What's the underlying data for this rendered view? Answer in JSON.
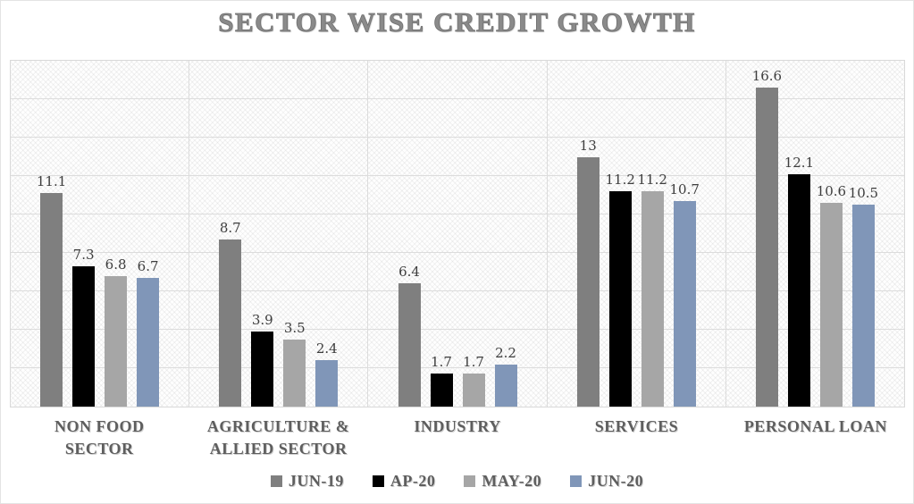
{
  "title": "SECTOR WISE CREDIT GROWTH",
  "colors": {
    "series_jun19": "#7F7F7F",
    "series_ap20": "#000000",
    "series_may20": "#A6A6A6",
    "series_jun20": "#8096B8",
    "gridline": "#DCDCDC",
    "plot_border": "#D9D9D9",
    "title_text": "#8A8A8A",
    "category_text": "#5E5E5E",
    "value_label_text": "#3D3D3D"
  },
  "chart_data": {
    "type": "bar",
    "title": "SECTOR WISE CREDIT GROWTH",
    "categories": [
      "NON FOOD SECTOR",
      "AGRICULTURE & ALLIED SECTOR",
      "INDUSTRY",
      "SERVICES",
      "PERSONAL LOAN"
    ],
    "series": [
      {
        "name": "JUN-19",
        "color": "#7F7F7F",
        "values": [
          11.1,
          8.7,
          6.4,
          13,
          16.6
        ]
      },
      {
        "name": "AP-20",
        "color": "#000000",
        "values": [
          7.3,
          3.9,
          1.7,
          11.2,
          12.1
        ]
      },
      {
        "name": "MAY-20",
        "color": "#A6A6A6",
        "values": [
          6.8,
          3.5,
          1.7,
          11.2,
          10.6
        ]
      },
      {
        "name": "JUN-20",
        "color": "#8096B8",
        "values": [
          6.7,
          2.4,
          2.2,
          10.7,
          10.5
        ]
      }
    ],
    "xlabel": "",
    "ylabel": "",
    "ylim": [
      0,
      18
    ],
    "gridline_step": 2,
    "grid": true,
    "data_labels": true,
    "legend_position": "bottom",
    "plot_background": "diagonal-crosshatch"
  }
}
